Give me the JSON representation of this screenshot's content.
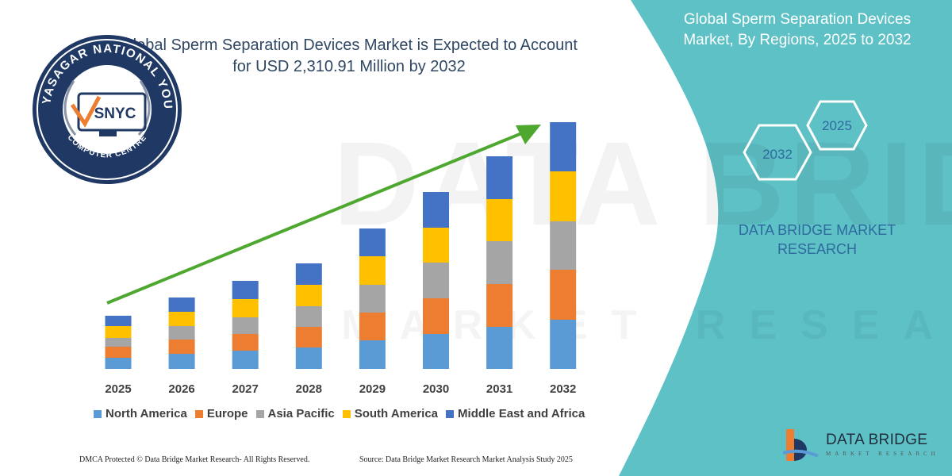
{
  "headline": {
    "line1": "Global Sperm Separation Devices Market is Expected to Account",
    "line2": "for USD 2,310.91 Million by 2032"
  },
  "side_panel": {
    "title_line1": "Global Sperm Separation Devices",
    "title_line2": "Market, By Regions, 2025 to 2032",
    "hex_left": "2032",
    "hex_right": "2025",
    "brand_line1": "DATA BRIDGE MARKET",
    "brand_line2": "RESEARCH"
  },
  "watermark": {
    "main": "DATA BRIDGE",
    "sub": "MARKET RESEARCH"
  },
  "chart_data": {
    "type": "bar",
    "stacked": true,
    "title": "Global Sperm Separation Devices Market is Expected to Account for USD 2,310.91 Million by 2032",
    "categories": [
      "2025",
      "2026",
      "2027",
      "2028",
      "2029",
      "2030",
      "2031",
      "2032"
    ],
    "series": [
      {
        "name": "North America",
        "color": "#5b9bd5",
        "values": [
          14,
          19,
          23,
          27,
          36,
          44,
          53,
          62
        ]
      },
      {
        "name": "Europe",
        "color": "#ed7d31",
        "values": [
          14,
          18,
          21,
          26,
          35,
          45,
          54,
          63
        ]
      },
      {
        "name": "Asia Pacific",
        "color": "#a5a5a5",
        "values": [
          11,
          17,
          21,
          26,
          35,
          45,
          54,
          61
        ]
      },
      {
        "name": "South America",
        "color": "#ffc000",
        "values": [
          15,
          18,
          23,
          27,
          36,
          44,
          53,
          63
        ]
      },
      {
        "name": "Middle East and Africa",
        "color": "#4472c4",
        "values": [
          13,
          18,
          23,
          27,
          35,
          45,
          54,
          62
        ]
      }
    ],
    "legend_position": "bottom",
    "trend_arrow": true
  },
  "logo": {
    "ring_top": "VIDYASAGAR NATIONAL YOUTH",
    "ring_bottom": "COMPUTER CENTRE",
    "emblem": "SNYC"
  },
  "brand_logo": {
    "name": "DATA BRIDGE",
    "sub": "MARKET RESEARCH"
  },
  "footer": {
    "left": "DMCA Protected © Data Bridge Market Research- All Rights Reserved.",
    "right": "Source: Data Bridge Market Research Market Analysis Study 2025"
  },
  "colors": {
    "teal": "#5ec1c6",
    "navy": "#1f3864",
    "arrow": "#4ea72e"
  }
}
